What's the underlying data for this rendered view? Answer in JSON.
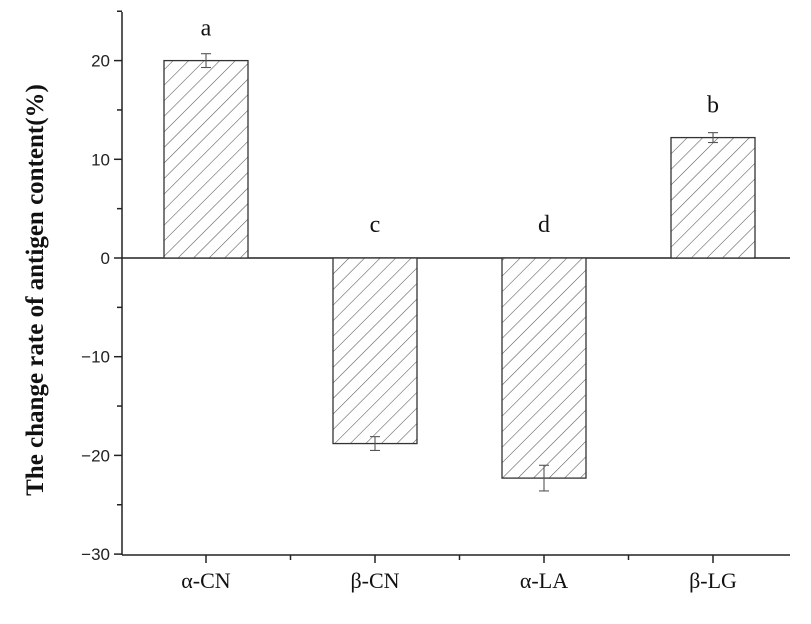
{
  "chart_data": {
    "type": "bar",
    "categories": [
      "α-CN",
      "β-CN",
      "α-LA",
      "β-LG"
    ],
    "values": [
      20.0,
      -18.8,
      -22.3,
      12.2
    ],
    "errors": [
      0.7,
      0.7,
      1.3,
      0.5
    ],
    "significance_labels": [
      "a",
      "c",
      "d",
      "b"
    ],
    "title": "",
    "xlabel": "",
    "ylabel": "The change rate of antigen content(%)",
    "ylim": [
      -30,
      25
    ],
    "yticks": [
      -30,
      -20,
      -10,
      0,
      10,
      20
    ],
    "ytick_labels": [
      "−30",
      "−20",
      "−10",
      "0",
      "10",
      "20"
    ],
    "bar_fill": "hatched",
    "grid": false,
    "legend": "none"
  }
}
